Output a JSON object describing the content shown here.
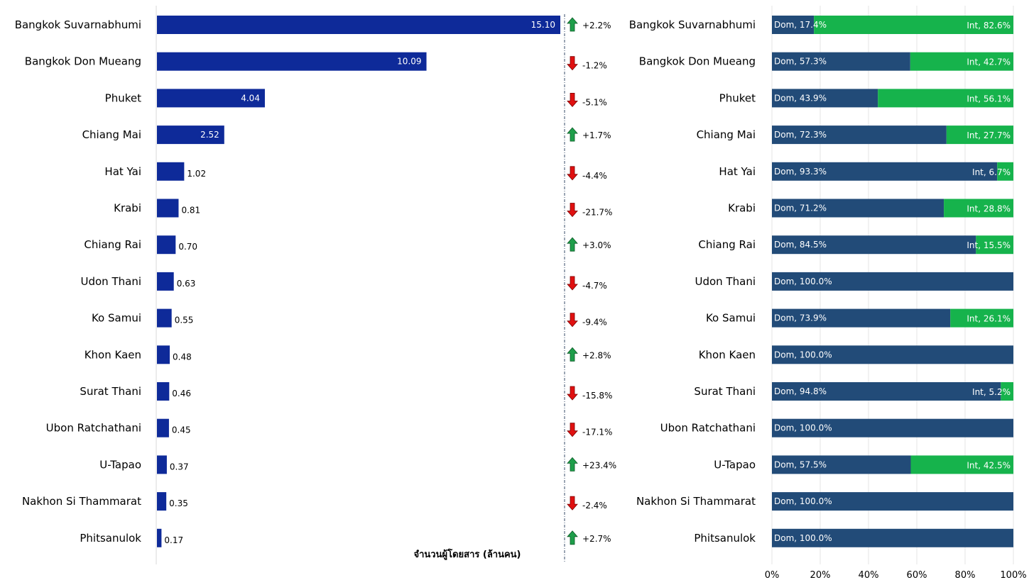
{
  "chart_data": [
    {
      "type": "bar",
      "orientation": "horizontal",
      "xlabel": "จำนวนผู้โดยสาร (ล้านคน)",
      "categories": [
        "Bangkok Suvarnabhumi",
        "Bangkok Don Mueang",
        "Phuket",
        "Chiang Mai",
        "Hat Yai",
        "Krabi",
        "Chiang Rai",
        "Udon Thani",
        "Ko Samui",
        "Khon Kaen",
        "Surat Thani",
        "Ubon Ratchathani",
        "U-Tapao",
        "Nakhon Si Thammarat",
        "Phitsanulok"
      ],
      "values": [
        15.1,
        10.09,
        4.04,
        2.52,
        1.02,
        0.81,
        0.7,
        0.63,
        0.55,
        0.48,
        0.46,
        0.45,
        0.37,
        0.35,
        0.17
      ],
      "value_labels": [
        "15.10",
        "10.09",
        "4.04",
        "2.52",
        "1.02",
        "0.81",
        "0.70",
        "0.63",
        "0.55",
        "0.48",
        "0.46",
        "0.45",
        "0.37",
        "0.35",
        "0.17"
      ],
      "xlim": [
        0,
        15.1
      ],
      "bar_color": "#0E2A99",
      "changes": [
        {
          "dir": "up",
          "label": "+2.2%"
        },
        {
          "dir": "down",
          "label": "-1.2%"
        },
        {
          "dir": "down",
          "label": "-5.1%"
        },
        {
          "dir": "up",
          "label": "+1.7%"
        },
        {
          "dir": "down",
          "label": "-4.4%"
        },
        {
          "dir": "down",
          "label": "-21.7%"
        },
        {
          "dir": "up",
          "label": "+3.0%"
        },
        {
          "dir": "down",
          "label": "-4.7%"
        },
        {
          "dir": "down",
          "label": "-9.4%"
        },
        {
          "dir": "up",
          "label": "+2.8%"
        },
        {
          "dir": "down",
          "label": "-15.8%"
        },
        {
          "dir": "down",
          "label": "-17.1%"
        },
        {
          "dir": "up",
          "label": "+23.4%"
        },
        {
          "dir": "down",
          "label": "-2.4%"
        },
        {
          "dir": "up",
          "label": "+2.7%"
        }
      ],
      "up_color": "#1E9E4A",
      "down_color": "#E01010"
    },
    {
      "type": "bar",
      "orientation": "horizontal",
      "stacked": "percent",
      "categories": [
        "Bangkok Suvarnabhumi",
        "Bangkok Don Mueang",
        "Phuket",
        "Chiang Mai",
        "Hat Yai",
        "Krabi",
        "Chiang Rai",
        "Udon Thani",
        "Ko Samui",
        "Khon Kaen",
        "Surat Thani",
        "Ubon Ratchathani",
        "U-Tapao",
        "Nakhon Si Thammarat",
        "Phitsanulok"
      ],
      "series": [
        {
          "name": "Dom",
          "color": "#224B78",
          "values": [
            17.4,
            57.3,
            43.9,
            72.3,
            93.3,
            71.2,
            84.5,
            100.0,
            73.9,
            100.0,
            94.8,
            100.0,
            57.5,
            100.0,
            100.0
          ],
          "labels": [
            "Dom, 17.4%",
            "Dom, 57.3%",
            "Dom, 43.9%",
            "Dom, 72.3%",
            "Dom, 93.3%",
            "Dom, 71.2%",
            "Dom, 84.5%",
            "Dom, 100.0%",
            "Dom, 73.9%",
            "Dom, 100.0%",
            "Dom, 94.8%",
            "Dom, 100.0%",
            "Dom, 57.5%",
            "Dom, 100.0%",
            "Dom, 100.0%"
          ]
        },
        {
          "name": "Int",
          "color": "#16B34C",
          "values": [
            82.6,
            42.7,
            56.1,
            27.7,
            6.7,
            28.8,
            15.5,
            0,
            26.1,
            0,
            5.2,
            0,
            42.5,
            0,
            0
          ],
          "labels": [
            "Int, 82.6%",
            "Int, 42.7%",
            "Int, 56.1%",
            "Int, 27.7%",
            "Int, 6.7%",
            "Int, 28.8%",
            "Int, 15.5%",
            "",
            "Int, 26.1%",
            "",
            "Int, 5.2%",
            "",
            "Int, 42.5%",
            "",
            ""
          ]
        }
      ],
      "xlim": [
        0,
        100
      ],
      "xticks": [
        "0%",
        "20%",
        "40%",
        "60%",
        "80%",
        "100%"
      ],
      "grid": true
    }
  ]
}
